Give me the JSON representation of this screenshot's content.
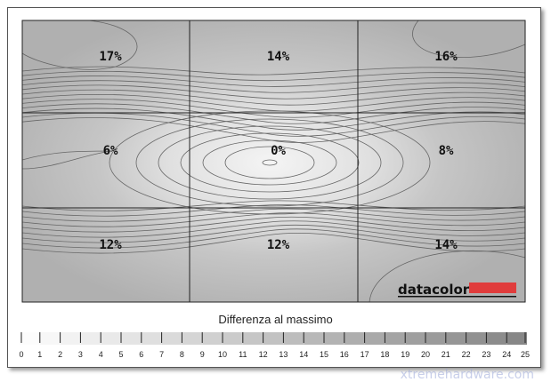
{
  "chart_data": {
    "type": "heatmap",
    "grid": {
      "rows": 3,
      "cols": 3
    },
    "values": [
      [
        17,
        14,
        16
      ],
      [
        6,
        0,
        8
      ],
      [
        12,
        12,
        14
      ]
    ],
    "labels": [
      [
        "17%",
        "14%",
        "16%"
      ],
      [
        "6%",
        "0%",
        "8%"
      ],
      [
        "12%",
        "12%",
        "14%"
      ]
    ],
    "unit": "%",
    "scale": {
      "title": "Differenza al massimo",
      "min": 0,
      "max": 25,
      "ticks": [
        "0",
        "1",
        "2",
        "3",
        "4",
        "5",
        "6",
        "7",
        "8",
        "9",
        "10",
        "11",
        "12",
        "13",
        "14",
        "15",
        "16",
        "17",
        "18",
        "19",
        "20",
        "21",
        "22",
        "23",
        "24",
        "25"
      ]
    },
    "brand": "datacolor",
    "watermark": "xtremehardware.com"
  },
  "colors": {
    "brand_red": "#e03c3c",
    "line": "#555555"
  }
}
